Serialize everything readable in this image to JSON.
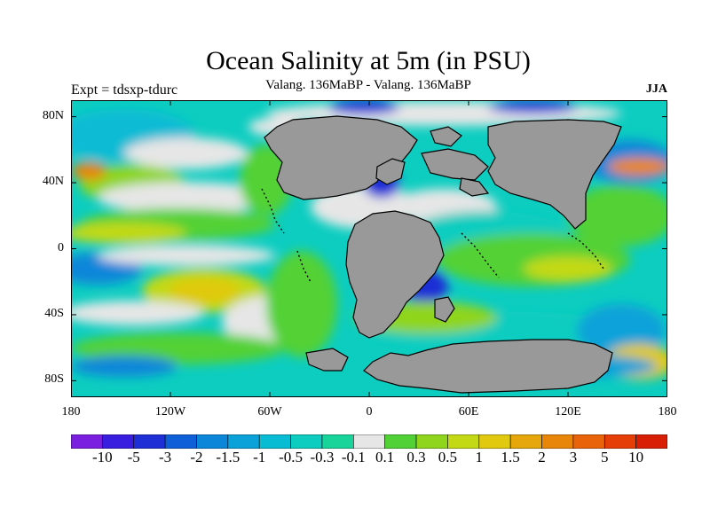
{
  "title": "Ocean Salinity at 5m (in PSU)",
  "subtitle": "Valang. 136MaBP - Valang.  136MaBP",
  "experiment_label": "Expt = tdsxp-tdurc",
  "season": "JJA",
  "colors": {
    "land": "#999999",
    "near_zero": "#e6e6e6",
    "border": "#000000"
  },
  "axes": {
    "lat_ticks": [
      "80N",
      "40N",
      "0",
      "40S",
      "80S"
    ],
    "lat_values": [
      80,
      40,
      0,
      -40,
      -80
    ],
    "lon_ticks": [
      "180",
      "120W",
      "60W",
      "0",
      "60E",
      "120E",
      "180"
    ],
    "lon_values": [
      -180,
      -120,
      -60,
      0,
      60,
      120,
      180
    ],
    "lat_range": [
      -90,
      90
    ],
    "lon_range": [
      -180,
      180
    ]
  },
  "colorbar": {
    "labels": [
      "-10",
      "-5",
      "-3",
      "-2",
      "-1.5",
      "-1",
      "-0.5",
      "-0.3",
      "-0.1",
      "0.1",
      "0.3",
      "0.5",
      "1",
      "1.5",
      "2",
      "3",
      "5",
      "10"
    ],
    "colors": [
      "#7a1fe0",
      "#3a1ee0",
      "#1f2fd6",
      "#0e5fd8",
      "#0b86d9",
      "#0aa2d9",
      "#08bcd4",
      "#0ccdc0",
      "#19d49a",
      "#e6e6e6",
      "#52d136",
      "#8fd51e",
      "#c3d916",
      "#e0c90f",
      "#e5a70c",
      "#e8860a",
      "#e86309",
      "#e63e07",
      "#d81e05"
    ]
  }
}
